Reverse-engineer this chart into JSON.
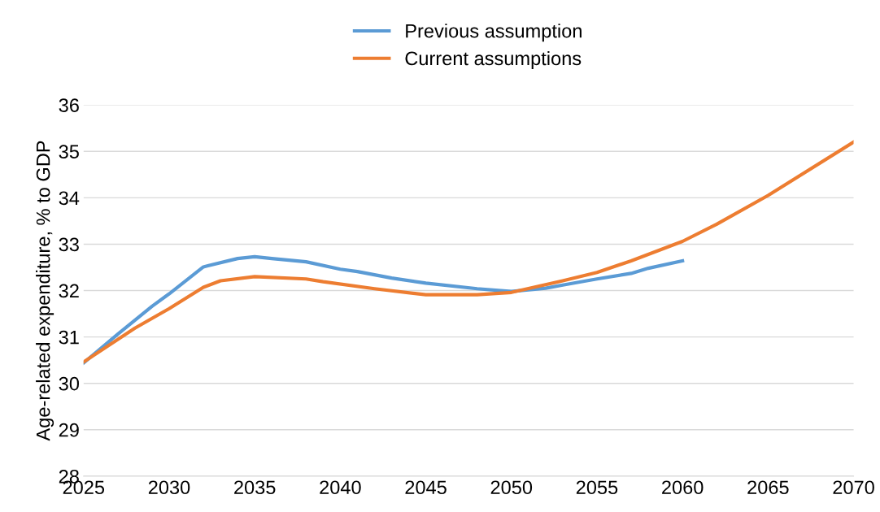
{
  "chart_data": {
    "type": "line",
    "ylabel": "Age-related expenditure, % to GDP",
    "xlim": [
      2025,
      2070
    ],
    "xticks": [
      2025,
      2030,
      2035,
      2040,
      2045,
      2050,
      2055,
      2060,
      2065,
      2070
    ],
    "ylim": [
      28,
      36
    ],
    "yticks": [
      28,
      29,
      30,
      31,
      32,
      33,
      34,
      35,
      36
    ],
    "grid": "y",
    "legend": "top",
    "line_style": "solid",
    "marker": "none",
    "series": [
      {
        "name": "Previous assumption",
        "color": "#5b9bd5",
        "x": [
          2025,
          2027,
          2029,
          2030,
          2032,
          2034,
          2035,
          2036,
          2038,
          2040,
          2041,
          2043,
          2045,
          2048,
          2050,
          2052,
          2053,
          2055,
          2057,
          2058,
          2060
        ],
        "values": [
          30.44,
          31.06,
          31.66,
          31.93,
          32.51,
          32.69,
          32.73,
          32.69,
          32.62,
          32.46,
          32.41,
          32.27,
          32.16,
          32.04,
          31.98,
          32.05,
          32.12,
          32.25,
          32.37,
          32.48,
          32.64
        ]
      },
      {
        "name": "Current assumptions",
        "color": "#ed7d31",
        "x": [
          2025,
          2028,
          2030,
          2032,
          2033,
          2035,
          2038,
          2039,
          2042,
          2045,
          2048,
          2050,
          2053,
          2055,
          2057,
          2060,
          2062,
          2065,
          2070
        ],
        "values": [
          30.46,
          31.19,
          31.61,
          32.07,
          32.21,
          32.3,
          32.25,
          32.19,
          32.04,
          31.91,
          31.91,
          31.96,
          32.21,
          32.39,
          32.64,
          33.06,
          33.43,
          34.05,
          35.2
        ]
      }
    ]
  }
}
